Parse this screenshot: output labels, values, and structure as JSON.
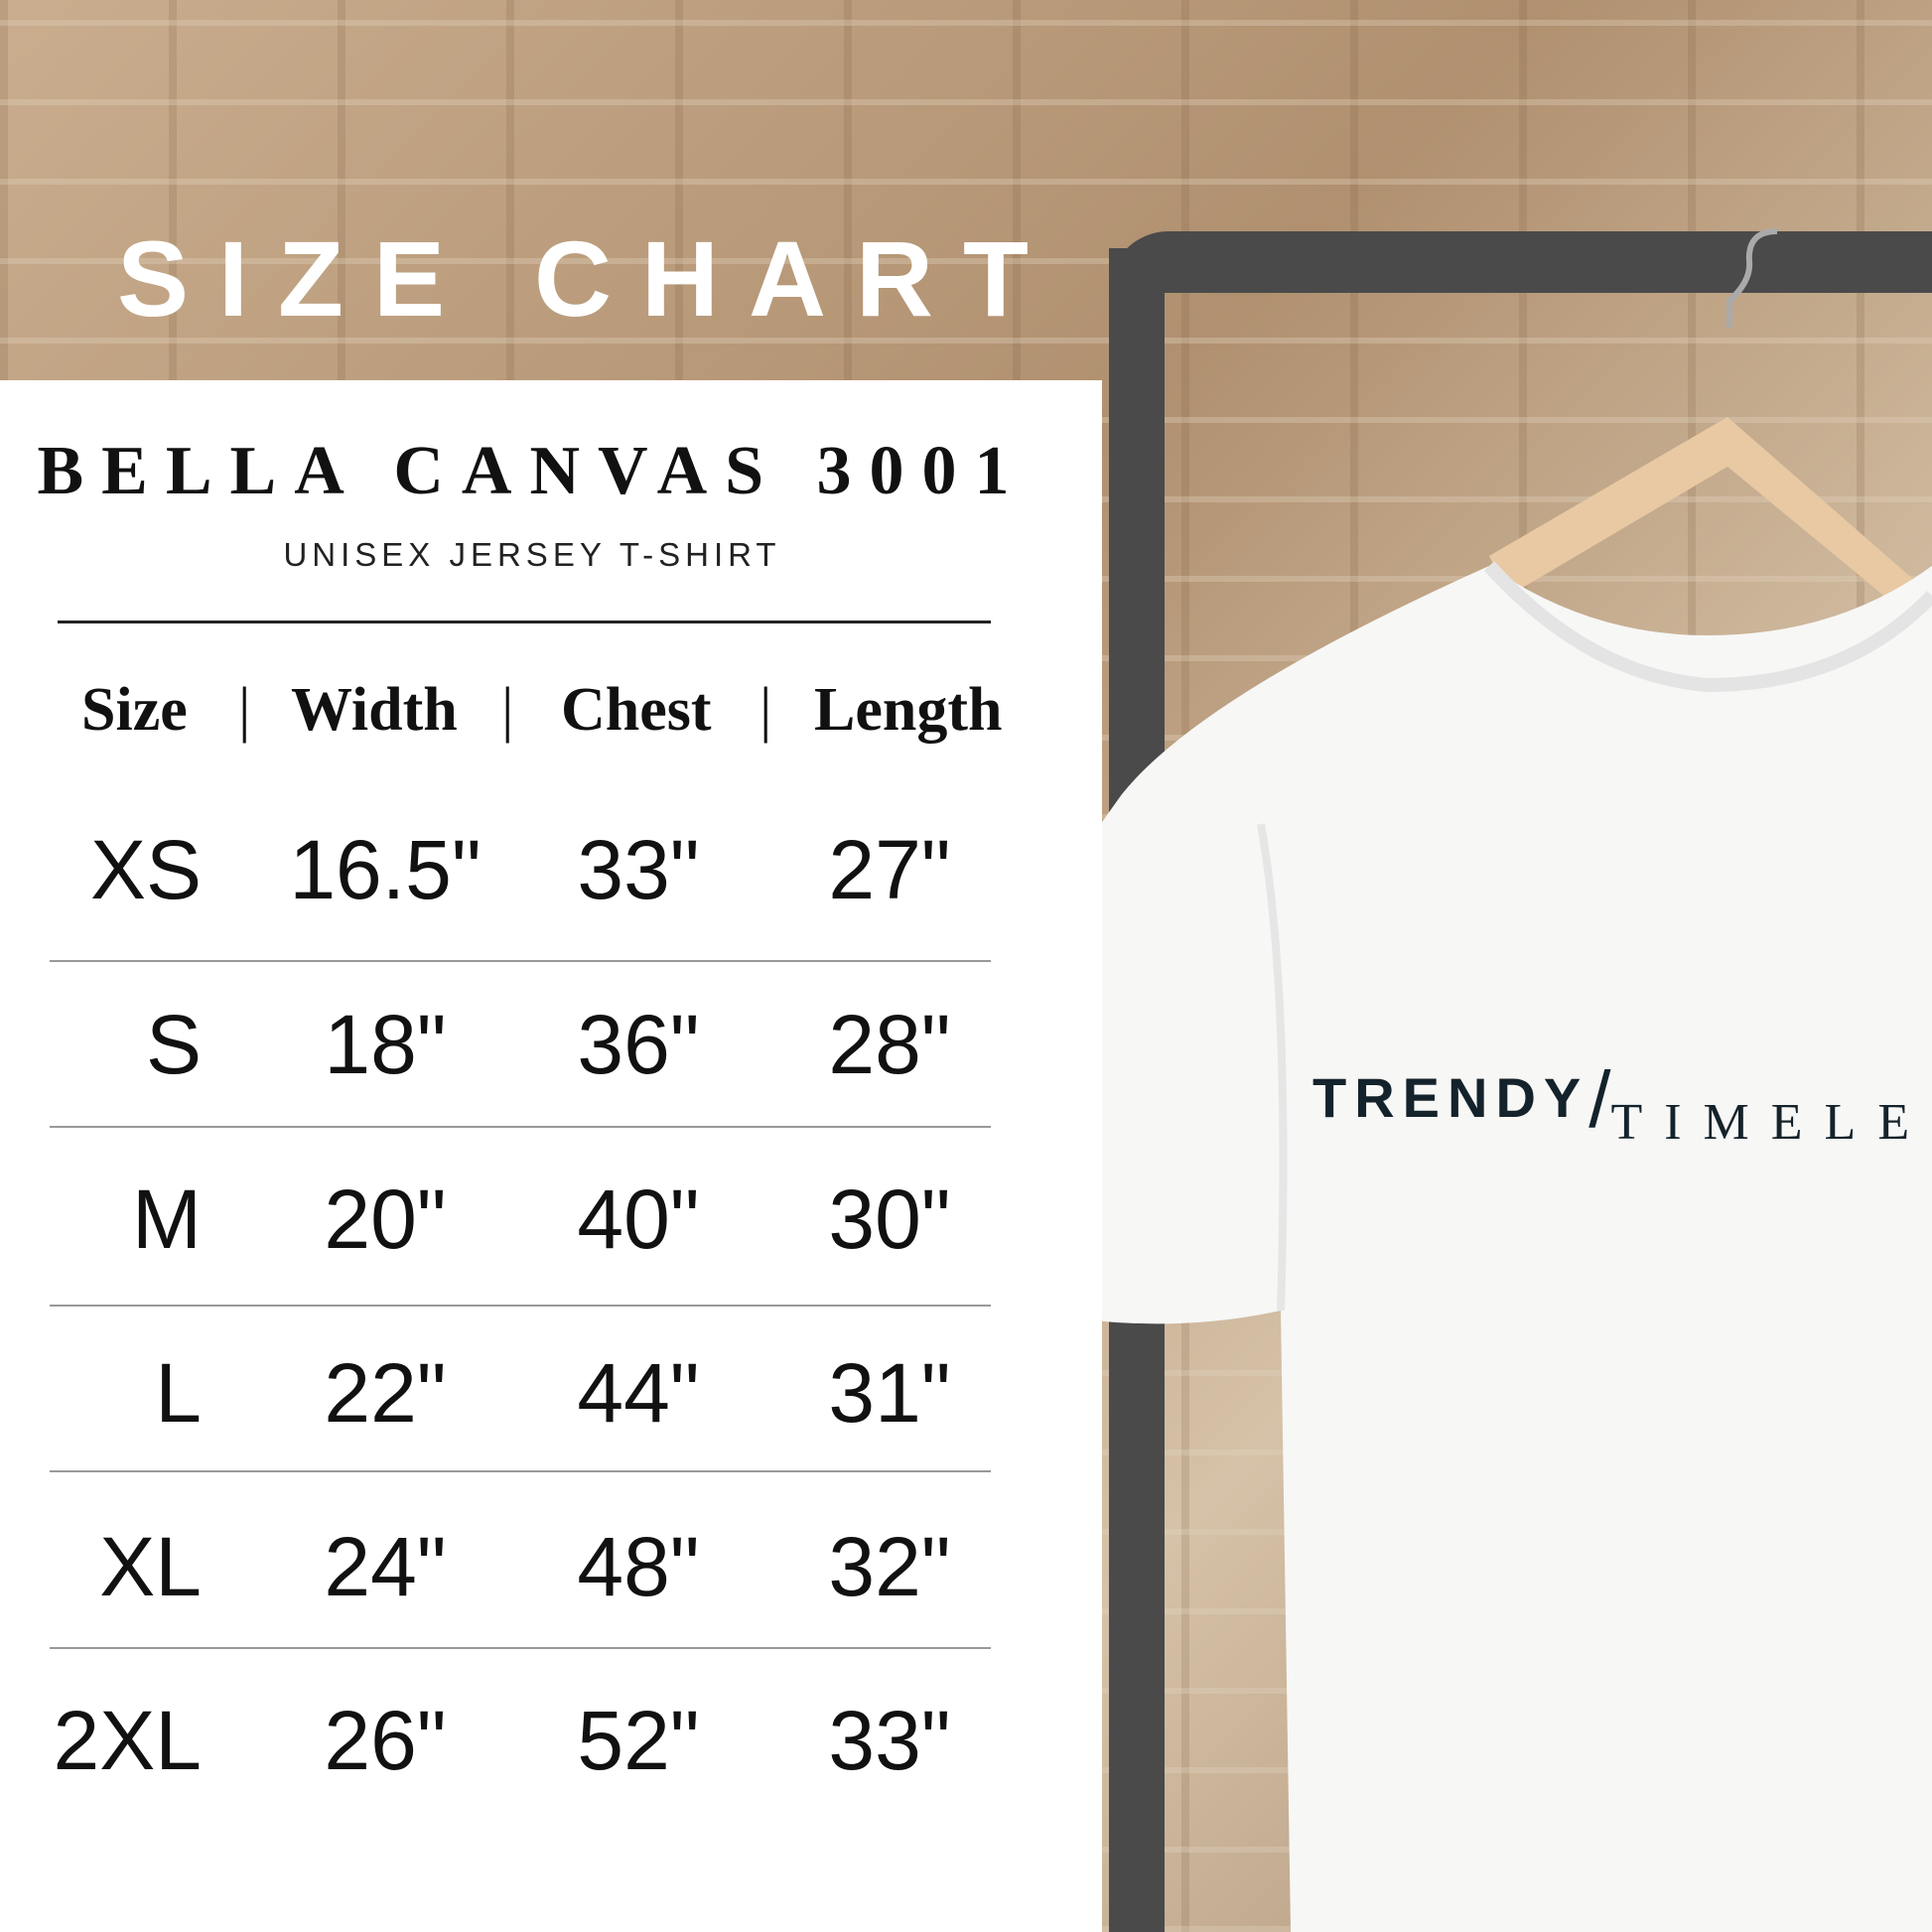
{
  "title": "SIZE CHART",
  "product": {
    "name": "BELLA CANVAS 3001",
    "subtitle": "UNISEX JERSEY T-SHIRT"
  },
  "table": {
    "headers": [
      "Size",
      "|",
      "Width",
      "|",
      "Chest",
      "|",
      "Length"
    ],
    "rows": [
      {
        "size": "XS",
        "width": "16.5\"",
        "chest": "33\"",
        "length": "27\""
      },
      {
        "size": "S",
        "width": "18\"",
        "chest": "36\"",
        "length": "28\""
      },
      {
        "size": "M",
        "width": "20\"",
        "chest": "40\"",
        "length": "30\""
      },
      {
        "size": "L",
        "width": "22\"",
        "chest": "44\"",
        "length": "31\""
      },
      {
        "size": "XL",
        "width": "24\"",
        "chest": "48\"",
        "length": "32\""
      },
      {
        "size": "2XL",
        "width": "26\"",
        "chest": "52\"",
        "length": "33\""
      }
    ]
  },
  "shirt_print": {
    "part1": "TRENDY",
    "slash": "/",
    "part2": "TIMELE"
  },
  "colors": {
    "panel": "#ffffff",
    "rack": "#4a4a4a",
    "text": "#111111",
    "print": "#14232b"
  }
}
